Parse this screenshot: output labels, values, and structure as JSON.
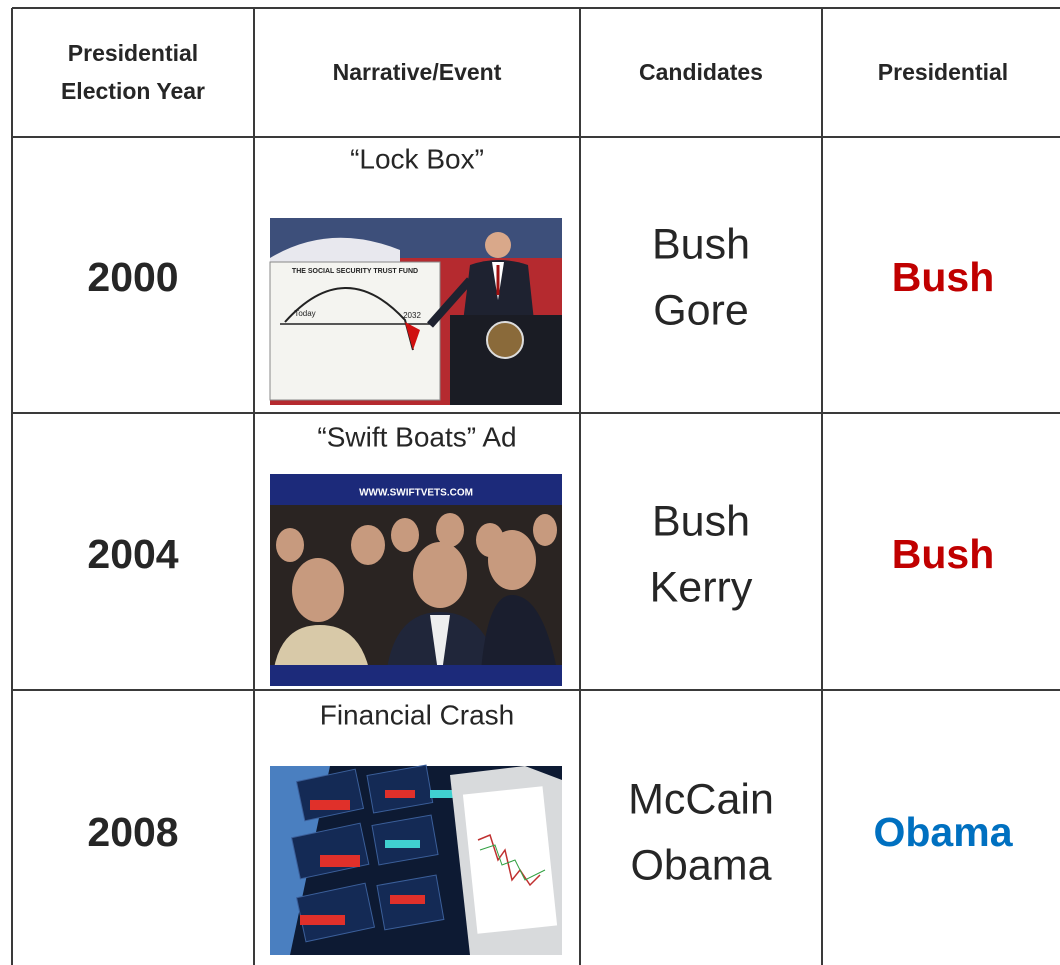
{
  "table": {
    "header": [
      [
        "Presidential",
        "Election Year"
      ],
      [
        "Narrative/Event"
      ],
      [
        "Candidates"
      ],
      [
        "Presidential"
      ]
    ],
    "rows": [
      {
        "year": "2000",
        "narrative": "“Lock Box”",
        "candidates": [
          "Bush",
          "Gore"
        ],
        "winner": "Bush",
        "winner_color": "#c00000",
        "image_text": [
          "THE SOCIAL SECURITY TRUST FUND",
          "Today",
          "2032"
        ]
      },
      {
        "year": "2004",
        "narrative": "“Swift Boats” Ad",
        "candidates": [
          "Bush",
          "Kerry"
        ],
        "winner": "Bush",
        "winner_color": "#c00000",
        "image_text": [
          "WWW.SWIFTVETS.COM"
        ]
      },
      {
        "year": "2008",
        "narrative": "Financial Crash",
        "candidates": [
          "McCain",
          "Obama"
        ],
        "winner": "Obama",
        "winner_color": "#0070c0"
      }
    ]
  }
}
